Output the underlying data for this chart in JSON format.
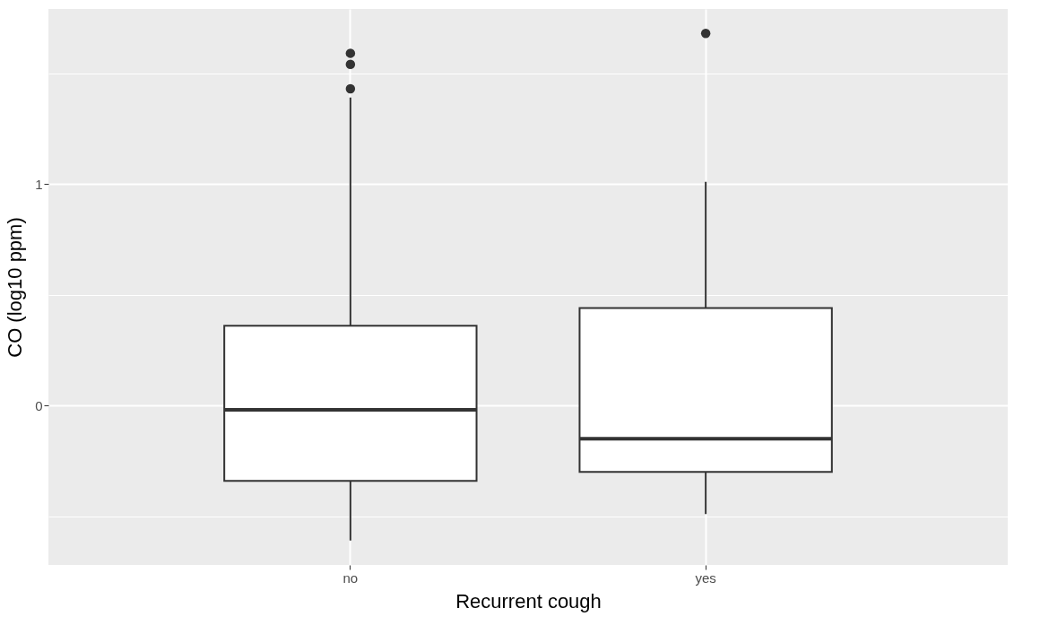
{
  "chart_data": {
    "type": "box",
    "xlabel": "Recurrent cough",
    "ylabel": "CO (log10 ppm)",
    "categories": [
      "no",
      "yes"
    ],
    "boxes": [
      {
        "low": -0.61,
        "q1": -0.34,
        "median": -0.02,
        "q3": 0.36,
        "high": 1.39,
        "outliers": [
          1.43,
          1.54,
          1.59
        ]
      },
      {
        "low": -0.49,
        "q1": -0.3,
        "median": -0.15,
        "q3": 0.44,
        "high": 1.01,
        "outliers": [
          1.68
        ]
      }
    ],
    "ylim": [
      -0.72,
      1.79
    ],
    "yticks": [
      {
        "value": -0.5,
        "label": null
      },
      0,
      {
        "value": 0.5,
        "label": null
      },
      1,
      {
        "value": 1.5,
        "label": null
      }
    ],
    "grid": true
  }
}
